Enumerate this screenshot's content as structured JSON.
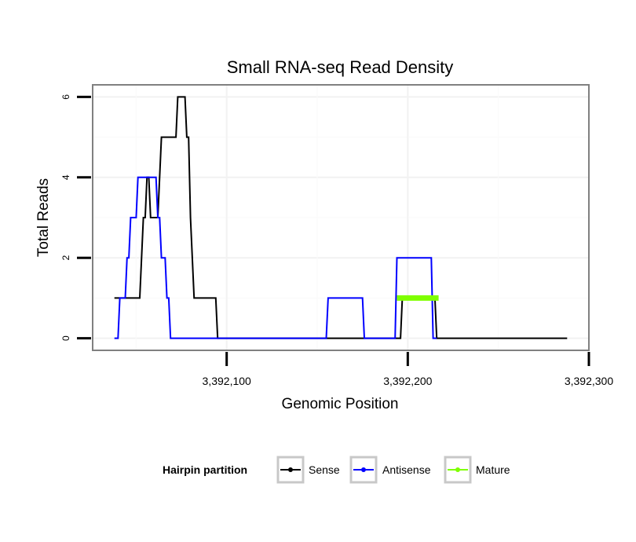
{
  "chart_data": {
    "type": "line",
    "title": "Small RNA-seq Read Density",
    "xlabel": "Genomic Position",
    "ylabel": "Total Reads",
    "xlim": [
      3392026,
      3392300
    ],
    "ylim": [
      -0.3,
      6.3
    ],
    "xticks": [
      3392100,
      3392200,
      3392300
    ],
    "xtick_labels": [
      "3,392,100",
      "3,392,200",
      "3,392,300"
    ],
    "yticks": [
      0,
      2,
      4,
      6
    ],
    "ytick_labels": [
      "0",
      "2",
      "4",
      "6"
    ],
    "grid": true,
    "legend": {
      "title": "Hairpin partition",
      "position": "bottom",
      "entries": [
        "Sense",
        "Antisense",
        "Mature"
      ]
    },
    "series": [
      {
        "name": "Sense",
        "color": "#000000",
        "x": [
          3392038,
          3392052,
          3392054,
          3392055,
          3392056,
          3392057,
          3392058,
          3392062,
          3392063,
          3392064,
          3392072,
          3392073,
          3392077,
          3392078,
          3392079,
          3392080,
          3392082,
          3392094,
          3392095,
          3392196,
          3392197,
          3392215,
          3392216,
          3392288
        ],
        "y": [
          1,
          1,
          3,
          3,
          4,
          4,
          3,
          3,
          4,
          5,
          5,
          6,
          6,
          5,
          5,
          3,
          1,
          1,
          0,
          0,
          1,
          1,
          0,
          0
        ]
      },
      {
        "name": "Antisense",
        "color": "#0000ff",
        "x": [
          3392038,
          3392040,
          3392041,
          3392044,
          3392045,
          3392046,
          3392047,
          3392050,
          3392051,
          3392061,
          3392062,
          3392063,
          3392064,
          3392066,
          3392067,
          3392068,
          3392069,
          3392095,
          3392155,
          3392156,
          3392175,
          3392176,
          3392193,
          3392194,
          3392213,
          3392214,
          3392216
        ],
        "y": [
          0,
          0,
          1,
          1,
          2,
          2,
          3,
          3,
          4,
          4,
          3,
          3,
          2,
          2,
          1,
          1,
          0,
          0,
          0,
          1,
          1,
          0,
          0,
          2,
          2,
          0,
          0
        ]
      },
      {
        "name": "Mature",
        "color": "#7fff00",
        "x": [
          3392194,
          3392217
        ],
        "y": [
          1,
          1
        ]
      }
    ]
  }
}
